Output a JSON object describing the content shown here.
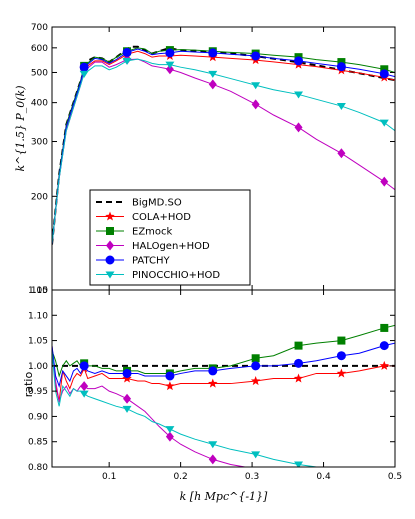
{
  "chart_data": [
    {
      "type": "line",
      "panel": "top",
      "yscale": "log",
      "xlim": [
        0.02,
        0.5
      ],
      "ylim": [
        100,
        700
      ],
      "ylabel": "k^{1.5} P_0(k)",
      "yticks": [
        100,
        200,
        300,
        400,
        500,
        600,
        700
      ],
      "yticklabels": [
        "100",
        "200",
        "300",
        "400",
        "500",
        "600",
        "700"
      ],
      "legend_position": "lower-left",
      "series": [
        {
          "name": "BigMD.SO",
          "color": "#000000",
          "dashed": true,
          "marker": "none",
          "x": [
            0.02,
            0.03,
            0.04,
            0.05,
            0.06,
            0.07,
            0.08,
            0.09,
            0.1,
            0.11,
            0.12,
            0.13,
            0.14,
            0.15,
            0.16,
            0.17,
            0.18,
            0.19,
            0.2,
            0.22,
            0.24,
            0.26,
            0.28,
            0.3,
            0.32,
            0.34,
            0.36,
            0.38,
            0.4,
            0.42,
            0.44,
            0.46,
            0.48,
            0.5
          ],
          "y": [
            140,
            235,
            340,
            400,
            470,
            545,
            560,
            555,
            540,
            560,
            582,
            605,
            605,
            590,
            575,
            585,
            595,
            595,
            590,
            587,
            583,
            578,
            572,
            566,
            558,
            550,
            541,
            532,
            522,
            512,
            502,
            492,
            482,
            472
          ]
        },
        {
          "name": "COLA+HOD",
          "color": "#ff0000",
          "marker": "star",
          "x": [
            0.02,
            0.03,
            0.04,
            0.05,
            0.06,
            0.065,
            0.08,
            0.09,
            0.1,
            0.11,
            0.125,
            0.14,
            0.15,
            0.16,
            0.17,
            0.185,
            0.2,
            0.22,
            0.245,
            0.27,
            0.305,
            0.33,
            0.365,
            0.39,
            0.425,
            0.45,
            0.485,
            0.5
          ],
          "y": [
            140,
            230,
            330,
            395,
            465,
            515,
            545,
            545,
            530,
            545,
            572,
            585,
            575,
            560,
            565,
            565,
            568,
            565,
            560,
            555,
            548,
            541,
            530,
            522,
            508,
            498,
            482,
            472
          ]
        },
        {
          "name": "EZmock",
          "color": "#008000",
          "marker": "square",
          "x": [
            0.02,
            0.03,
            0.04,
            0.05,
            0.06,
            0.065,
            0.08,
            0.09,
            0.1,
            0.11,
            0.125,
            0.14,
            0.15,
            0.16,
            0.17,
            0.185,
            0.2,
            0.22,
            0.245,
            0.27,
            0.305,
            0.33,
            0.365,
            0.39,
            0.425,
            0.45,
            0.485,
            0.5
          ],
          "y": [
            140,
            235,
            340,
            400,
            470,
            525,
            560,
            555,
            540,
            560,
            585,
            600,
            595,
            575,
            585,
            590,
            592,
            590,
            585,
            580,
            575,
            568,
            560,
            550,
            540,
            530,
            512,
            500
          ]
        },
        {
          "name": "HALOgen+HOD",
          "color": "#bf00bf",
          "marker": "diamond",
          "x": [
            0.02,
            0.03,
            0.04,
            0.05,
            0.06,
            0.065,
            0.08,
            0.09,
            0.1,
            0.11,
            0.125,
            0.14,
            0.15,
            0.16,
            0.17,
            0.185,
            0.2,
            0.22,
            0.245,
            0.27,
            0.305,
            0.33,
            0.365,
            0.39,
            0.425,
            0.45,
            0.485,
            0.5
          ],
          "y": [
            140,
            228,
            325,
            385,
            455,
            505,
            540,
            540,
            520,
            530,
            550,
            552,
            540,
            525,
            520,
            512,
            500,
            480,
            458,
            435,
            395,
            365,
            333,
            305,
            275,
            252,
            223,
            210
          ]
        },
        {
          "name": "PATCHY",
          "color": "#0000ff",
          "marker": "circle",
          "x": [
            0.02,
            0.03,
            0.04,
            0.05,
            0.06,
            0.065,
            0.08,
            0.09,
            0.1,
            0.11,
            0.125,
            0.14,
            0.15,
            0.16,
            0.17,
            0.185,
            0.2,
            0.22,
            0.245,
            0.27,
            0.305,
            0.33,
            0.365,
            0.39,
            0.425,
            0.45,
            0.485,
            0.5
          ],
          "y": [
            140,
            232,
            335,
            395,
            465,
            520,
            555,
            550,
            535,
            550,
            580,
            595,
            585,
            570,
            575,
            578,
            585,
            582,
            578,
            572,
            565,
            555,
            545,
            535,
            522,
            512,
            495,
            485
          ]
        },
        {
          "name": "PINOCCHIO+HOD",
          "color": "#00bfbf",
          "marker": "triangle-down",
          "x": [
            0.02,
            0.03,
            0.04,
            0.05,
            0.06,
            0.065,
            0.08,
            0.09,
            0.1,
            0.11,
            0.125,
            0.14,
            0.15,
            0.16,
            0.17,
            0.185,
            0.2,
            0.22,
            0.245,
            0.27,
            0.305,
            0.33,
            0.365,
            0.39,
            0.425,
            0.45,
            0.485,
            0.5
          ],
          "y": [
            140,
            228,
            325,
            385,
            455,
            495,
            525,
            525,
            510,
            520,
            545,
            552,
            545,
            535,
            530,
            530,
            520,
            510,
            495,
            478,
            455,
            440,
            425,
            410,
            390,
            372,
            345,
            325
          ]
        }
      ]
    },
    {
      "type": "line",
      "panel": "bottom",
      "xlim": [
        0.02,
        0.5
      ],
      "ylim": [
        0.8,
        1.15
      ],
      "xlabel": "k [h Mpc^{-1}]",
      "ylabel": "ratio",
      "xticks": [
        0.1,
        0.2,
        0.3,
        0.4,
        0.5
      ],
      "xticklabels": [
        "0.1",
        "0.2",
        "0.3",
        "0.4",
        "0.5"
      ],
      "yticks": [
        0.8,
        0.85,
        0.9,
        0.95,
        1.0,
        1.05,
        1.1,
        1.15
      ],
      "yticklabels": [
        "0.80",
        "0.85",
        "0.90",
        "0.95",
        "1.00",
        "1.05",
        "1.10",
        "1.15"
      ],
      "series": [
        {
          "name": "BigMD.SO",
          "color": "#000000",
          "dashed": true,
          "marker": "none",
          "x": [
            0.02,
            0.5
          ],
          "y": [
            1.0,
            1.0
          ]
        },
        {
          "name": "COLA+HOD",
          "color": "#ff0000",
          "marker": "star",
          "x": [
            0.02,
            0.025,
            0.03,
            0.035,
            0.04,
            0.045,
            0.05,
            0.055,
            0.06,
            0.065,
            0.07,
            0.08,
            0.09,
            0.1,
            0.11,
            0.125,
            0.14,
            0.15,
            0.16,
            0.17,
            0.185,
            0.2,
            0.22,
            0.245,
            0.27,
            0.305,
            0.33,
            0.365,
            0.39,
            0.425,
            0.45,
            0.485,
            0.5
          ],
          "y": [
            1.03,
            0.96,
            0.93,
            0.99,
            0.97,
            0.955,
            0.975,
            0.985,
            0.98,
            0.995,
            0.975,
            0.98,
            0.985,
            0.975,
            0.975,
            0.975,
            0.97,
            0.97,
            0.965,
            0.965,
            0.96,
            0.965,
            0.965,
            0.965,
            0.965,
            0.97,
            0.975,
            0.975,
            0.985,
            0.985,
            0.99,
            1.0,
            1.0
          ]
        },
        {
          "name": "EZmock",
          "color": "#008000",
          "marker": "square",
          "x": [
            0.02,
            0.025,
            0.03,
            0.035,
            0.04,
            0.045,
            0.05,
            0.055,
            0.06,
            0.065,
            0.07,
            0.08,
            0.09,
            0.1,
            0.11,
            0.125,
            0.14,
            0.15,
            0.16,
            0.17,
            0.185,
            0.2,
            0.22,
            0.245,
            0.27,
            0.305,
            0.33,
            0.365,
            0.39,
            0.425,
            0.45,
            0.485,
            0.5
          ],
          "y": [
            1.03,
            1.01,
            0.98,
            1.0,
            1.01,
            1.0,
            1.005,
            1.01,
            1.0,
            1.005,
            1.0,
            1.0,
            0.995,
            0.995,
            0.99,
            0.99,
            0.99,
            0.985,
            0.985,
            0.985,
            0.985,
            0.99,
            0.995,
            0.995,
            1.0,
            1.015,
            1.02,
            1.04,
            1.045,
            1.05,
            1.06,
            1.075,
            1.08
          ]
        },
        {
          "name": "HALOgen+HOD",
          "color": "#bf00bf",
          "marker": "diamond",
          "x": [
            0.02,
            0.025,
            0.03,
            0.035,
            0.04,
            0.045,
            0.05,
            0.055,
            0.06,
            0.065,
            0.07,
            0.08,
            0.09,
            0.1,
            0.11,
            0.125,
            0.14,
            0.15,
            0.16,
            0.17,
            0.185,
            0.2,
            0.22,
            0.245,
            0.27,
            0.29
          ],
          "y": [
            1.04,
            0.97,
            0.93,
            0.95,
            0.96,
            0.945,
            0.955,
            0.95,
            0.96,
            0.96,
            0.955,
            0.955,
            0.96,
            0.95,
            0.945,
            0.935,
            0.92,
            0.91,
            0.895,
            0.88,
            0.86,
            0.845,
            0.83,
            0.815,
            0.805,
            0.8
          ]
        },
        {
          "name": "PATCHY",
          "color": "#0000ff",
          "marker": "circle",
          "x": [
            0.02,
            0.025,
            0.03,
            0.035,
            0.04,
            0.045,
            0.05,
            0.055,
            0.06,
            0.065,
            0.07,
            0.08,
            0.09,
            0.1,
            0.11,
            0.125,
            0.14,
            0.15,
            0.16,
            0.17,
            0.185,
            0.2,
            0.22,
            0.245,
            0.27,
            0.305,
            0.33,
            0.365,
            0.39,
            0.425,
            0.45,
            0.485,
            0.5
          ],
          "y": [
            1.04,
            0.98,
            0.96,
            0.99,
            0.98,
            0.97,
            0.99,
            0.995,
            0.985,
            1.0,
            0.99,
            0.985,
            0.99,
            0.985,
            0.985,
            0.985,
            0.985,
            0.98,
            0.98,
            0.98,
            0.98,
            0.985,
            0.99,
            0.99,
            0.995,
            1.0,
            1.0,
            1.005,
            1.01,
            1.02,
            1.025,
            1.04,
            1.045
          ]
        },
        {
          "name": "PINOCCHIO+HOD",
          "color": "#00bfbf",
          "marker": "triangle-down",
          "x": [
            0.02,
            0.025,
            0.03,
            0.035,
            0.04,
            0.045,
            0.05,
            0.055,
            0.06,
            0.065,
            0.07,
            0.08,
            0.09,
            0.1,
            0.11,
            0.125,
            0.14,
            0.15,
            0.16,
            0.17,
            0.185,
            0.2,
            0.22,
            0.245,
            0.27,
            0.305,
            0.33,
            0.365,
            0.39,
            0.41
          ],
          "y": [
            1.03,
            0.95,
            0.92,
            0.96,
            0.95,
            0.94,
            0.955,
            0.95,
            0.95,
            0.945,
            0.94,
            0.935,
            0.93,
            0.925,
            0.92,
            0.915,
            0.905,
            0.9,
            0.89,
            0.885,
            0.875,
            0.865,
            0.855,
            0.845,
            0.835,
            0.825,
            0.815,
            0.805,
            0.8,
            0.795
          ]
        }
      ]
    }
  ]
}
